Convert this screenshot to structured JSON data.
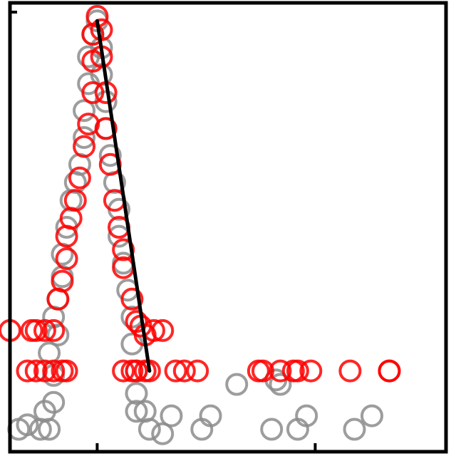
{
  "chart_data": {
    "type": "scatter",
    "title": "",
    "xlabel": "",
    "ylabel": "",
    "xlim": [
      0,
      10
    ],
    "ylim": [
      0,
      10
    ],
    "grid": false,
    "legend": "none",
    "colors": {
      "series_gray": "#8c8c8c",
      "series_red": "#ff0000",
      "fit_line": "#000000",
      "frame": "#000000"
    },
    "series": [
      {
        "color": "#8c8c8c",
        "points": [
          {
            "x": 0.2,
            "y": 0.5
          },
          {
            "x": 0.4,
            "y": 0.6
          },
          {
            "x": 0.7,
            "y": 0.5
          },
          {
            "x": 0.9,
            "y": 0.5
          },
          {
            "x": 0.8,
            "y": 0.9
          },
          {
            "x": 1.0,
            "y": 1.1
          },
          {
            "x": 1.0,
            "y": 1.7
          },
          {
            "x": 0.9,
            "y": 2.2
          },
          {
            "x": 1.1,
            "y": 2.6
          },
          {
            "x": 1.0,
            "y": 3.0
          },
          {
            "x": 1.1,
            "y": 3.4
          },
          {
            "x": 1.2,
            "y": 3.9
          },
          {
            "x": 1.2,
            "y": 4.4
          },
          {
            "x": 1.3,
            "y": 5.0
          },
          {
            "x": 1.4,
            "y": 5.6
          },
          {
            "x": 1.5,
            "y": 6.0
          },
          {
            "x": 1.6,
            "y": 6.4
          },
          {
            "x": 1.7,
            "y": 7.0
          },
          {
            "x": 1.7,
            "y": 7.6
          },
          {
            "x": 1.8,
            "y": 8.2
          },
          {
            "x": 1.8,
            "y": 8.8
          },
          {
            "x": 1.9,
            "y": 9.3
          },
          {
            "x": 2.0,
            "y": 9.6
          },
          {
            "x": 2.1,
            "y": 9.0
          },
          {
            "x": 2.1,
            "y": 8.4
          },
          {
            "x": 2.2,
            "y": 7.8
          },
          {
            "x": 2.2,
            "y": 7.2
          },
          {
            "x": 2.3,
            "y": 6.6
          },
          {
            "x": 2.4,
            "y": 6.0
          },
          {
            "x": 2.5,
            "y": 5.4
          },
          {
            "x": 2.5,
            "y": 4.8
          },
          {
            "x": 2.6,
            "y": 4.2
          },
          {
            "x": 2.7,
            "y": 3.6
          },
          {
            "x": 2.8,
            "y": 3.0
          },
          {
            "x": 2.8,
            "y": 2.4
          },
          {
            "x": 2.9,
            "y": 1.8
          },
          {
            "x": 2.9,
            "y": 1.3
          },
          {
            "x": 2.9,
            "y": 0.9
          },
          {
            "x": 3.1,
            "y": 0.9
          },
          {
            "x": 3.2,
            "y": 0.5
          },
          {
            "x": 3.5,
            "y": 0.4
          },
          {
            "x": 3.7,
            "y": 0.8
          },
          {
            "x": 4.4,
            "y": 0.5
          },
          {
            "x": 4.6,
            "y": 0.8
          },
          {
            "x": 5.2,
            "y": 1.5
          },
          {
            "x": 6.0,
            "y": 0.5
          },
          {
            "x": 6.1,
            "y": 1.6
          },
          {
            "x": 6.2,
            "y": 1.5
          },
          {
            "x": 6.6,
            "y": 0.5
          },
          {
            "x": 6.8,
            "y": 0.8
          },
          {
            "x": 7.9,
            "y": 0.5
          },
          {
            "x": 8.3,
            "y": 0.8
          }
        ]
      },
      {
        "color": "#ff0000",
        "points": [
          {
            "x": 0.0,
            "y": 2.7
          },
          {
            "x": 0.5,
            "y": 2.7
          },
          {
            "x": 0.6,
            "y": 2.7
          },
          {
            "x": 0.8,
            "y": 2.7
          },
          {
            "x": 1.0,
            "y": 2.7
          },
          {
            "x": 0.4,
            "y": 1.8
          },
          {
            "x": 0.6,
            "y": 1.8
          },
          {
            "x": 0.8,
            "y": 1.8
          },
          {
            "x": 1.0,
            "y": 1.8
          },
          {
            "x": 1.2,
            "y": 1.8
          },
          {
            "x": 1.3,
            "y": 1.8
          },
          {
            "x": 1.1,
            "y": 3.4
          },
          {
            "x": 1.2,
            "y": 3.8
          },
          {
            "x": 1.3,
            "y": 4.3
          },
          {
            "x": 1.3,
            "y": 4.8
          },
          {
            "x": 1.4,
            "y": 5.2
          },
          {
            "x": 1.5,
            "y": 5.6
          },
          {
            "x": 1.6,
            "y": 6.1
          },
          {
            "x": 1.7,
            "y": 6.8
          },
          {
            "x": 1.8,
            "y": 7.3
          },
          {
            "x": 1.9,
            "y": 8.0
          },
          {
            "x": 1.9,
            "y": 8.7
          },
          {
            "x": 1.9,
            "y": 9.3
          },
          {
            "x": 2.0,
            "y": 9.7
          },
          {
            "x": 2.1,
            "y": 9.4
          },
          {
            "x": 2.1,
            "y": 8.8
          },
          {
            "x": 2.2,
            "y": 8.0
          },
          {
            "x": 2.2,
            "y": 7.2
          },
          {
            "x": 2.3,
            "y": 6.4
          },
          {
            "x": 2.4,
            "y": 5.6
          },
          {
            "x": 2.5,
            "y": 5.0
          },
          {
            "x": 2.6,
            "y": 4.5
          },
          {
            "x": 2.6,
            "y": 4.1
          },
          {
            "x": 2.8,
            "y": 3.4
          },
          {
            "x": 2.9,
            "y": 2.9
          },
          {
            "x": 3.1,
            "y": 2.6
          },
          {
            "x": 3.0,
            "y": 2.8
          },
          {
            "x": 3.3,
            "y": 2.7
          },
          {
            "x": 3.5,
            "y": 2.7
          },
          {
            "x": 2.6,
            "y": 1.8
          },
          {
            "x": 2.8,
            "y": 1.8
          },
          {
            "x": 2.9,
            "y": 1.8
          },
          {
            "x": 3.1,
            "y": 1.8
          },
          {
            "x": 3.2,
            "y": 1.8
          },
          {
            "x": 3.8,
            "y": 1.8
          },
          {
            "x": 4.0,
            "y": 1.8
          },
          {
            "x": 4.3,
            "y": 1.8
          },
          {
            "x": 5.7,
            "y": 1.8
          },
          {
            "x": 5.8,
            "y": 1.8
          },
          {
            "x": 6.2,
            "y": 1.8
          },
          {
            "x": 6.5,
            "y": 1.8
          },
          {
            "x": 6.6,
            "y": 1.8
          },
          {
            "x": 6.9,
            "y": 1.8
          },
          {
            "x": 7.8,
            "y": 1.8
          },
          {
            "x": 8.7,
            "y": 1.8
          },
          {
            "x": 8.7,
            "y": 1.8
          }
        ]
      }
    ],
    "fit_line": {
      "color": "#000000",
      "x": [
        2.0,
        3.2
      ],
      "y": [
        9.6,
        1.8
      ]
    }
  }
}
